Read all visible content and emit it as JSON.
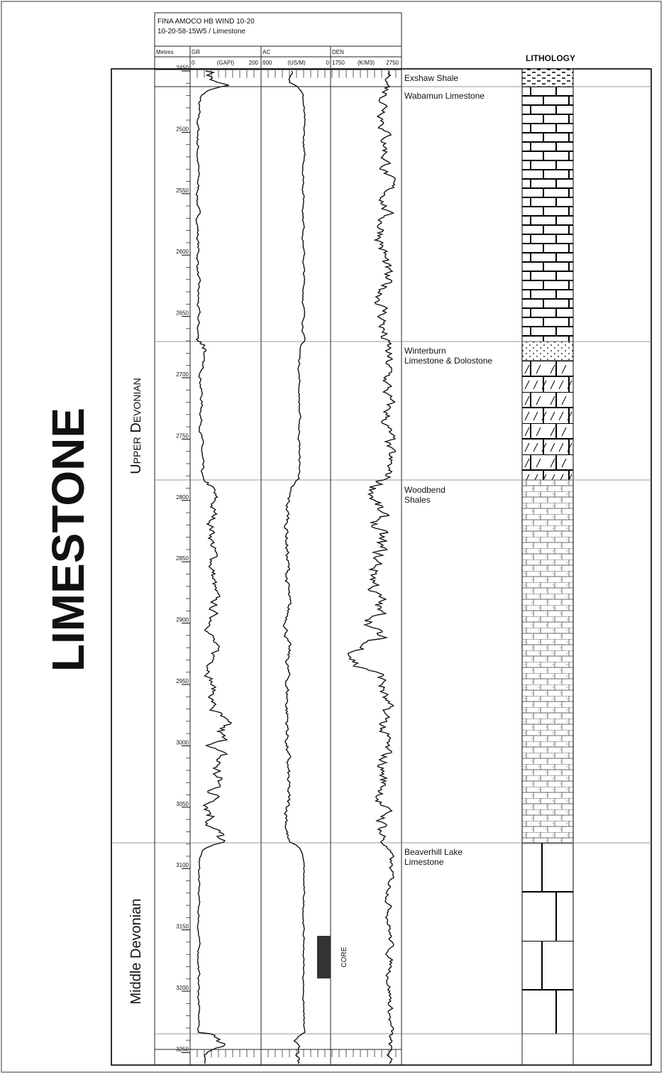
{
  "title": "LIMESTONE",
  "header": {
    "line1": "FINA AMOCO HB WIND 10-20",
    "line2": "10-20-58-15W5 / Limestone"
  },
  "depth_label": "Metres",
  "tracks": [
    {
      "name": "GR",
      "min": "0",
      "unit": "(GAPI)",
      "max": "200"
    },
    {
      "name": "AC",
      "min": "600",
      "unit": "(US/M)",
      "max": "0"
    },
    {
      "name": "DEN",
      "min": "1750",
      "unit": "(K/M3)",
      "max": "2750"
    }
  ],
  "depth_ticks": [
    "2450",
    "2500",
    "2550",
    "2600",
    "2650",
    "2700",
    "2750",
    "2800",
    "2850",
    "2900",
    "2950",
    "3000",
    "3050",
    "3100",
    "3150",
    "3200",
    "3250"
  ],
  "lithology_title": "LITHOLOGY",
  "periods": [
    "Upper Devonian",
    "Middle Devonian"
  ],
  "formations": [
    "Exshaw Shale",
    "Wabamun Limestone",
    "Winterburn Limestone & Dolostone",
    "Woodbend Shales",
    "Beaverhill Lake Limestone"
  ],
  "core_label": "CORE"
}
